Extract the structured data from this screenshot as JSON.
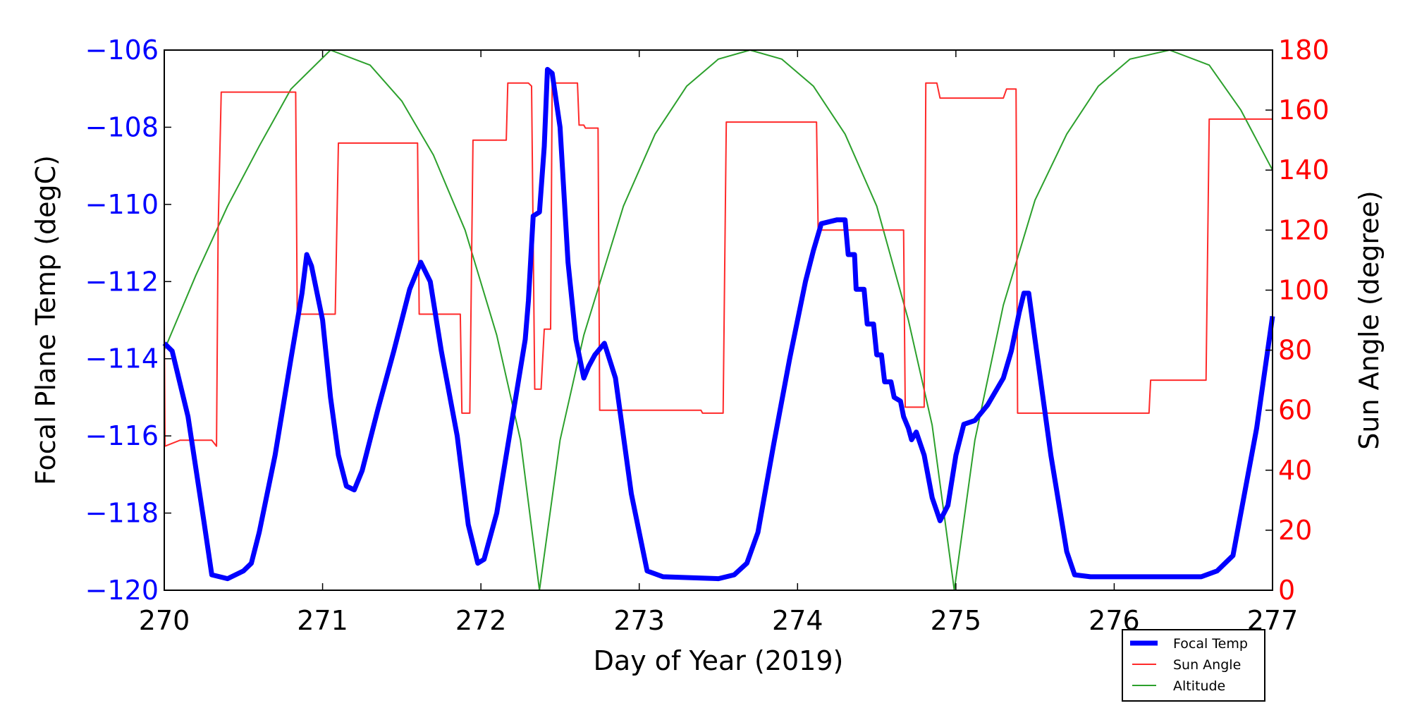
{
  "chart_data": {
    "type": "line",
    "xlabel": "Day of Year (2019)",
    "ylabel_left": "Focal Plane Temp (degC)",
    "ylabel_right": "Sun Angle (degree)",
    "xlim": [
      270,
      277
    ],
    "ylim_left": [
      -120,
      -106
    ],
    "ylim_right": [
      0,
      180
    ],
    "xticks": [
      270,
      271,
      272,
      273,
      274,
      275,
      276,
      277
    ],
    "yticks_left": [
      -120,
      -118,
      -116,
      -114,
      -112,
      -110,
      -108,
      -106
    ],
    "yticks_right": [
      0,
      20,
      40,
      60,
      80,
      100,
      120,
      140,
      160,
      180
    ],
    "legend_position": "below-right",
    "colors": {
      "focal": "#0000ff",
      "sun": "#ff2a2a",
      "altitude": "#2ca02c",
      "left_axis": "#0000ff",
      "right_axis": "#ff0000"
    },
    "series": [
      {
        "name": "Focal Temp",
        "axis": "left",
        "x": [
          270,
          270.05,
          270.15,
          270.25,
          270.3,
          270.35,
          270.4,
          270.5,
          270.55,
          270.6,
          270.7,
          270.8,
          270.87,
          270.9,
          270.93,
          271.0,
          271.05,
          271.1,
          271.15,
          271.2,
          271.25,
          271.35,
          271.45,
          271.55,
          271.62,
          271.68,
          271.75,
          271.85,
          271.92,
          271.98,
          272.02,
          272.1,
          272.2,
          272.28,
          272.3,
          272.33,
          272.37,
          272.4,
          272.42,
          272.45,
          272.5,
          272.55,
          272.6,
          272.65,
          272.68,
          272.72,
          272.78,
          272.85,
          272.95,
          273.05,
          273.15,
          273.5,
          273.6,
          273.68,
          273.75,
          273.85,
          273.95,
          274.05,
          274.1,
          274.15,
          274.25,
          274.3,
          274.32,
          274.36,
          274.37,
          274.42,
          274.44,
          274.48,
          274.5,
          274.53,
          274.55,
          274.59,
          274.61,
          274.65,
          274.67,
          274.7,
          274.72,
          274.75,
          274.8,
          274.85,
          274.9,
          274.95,
          275.0,
          275.05,
          275.12,
          275.2,
          275.3,
          275.35,
          275.4,
          275.43,
          275.46,
          275.5,
          275.6,
          275.7,
          275.75,
          275.85,
          276.55,
          276.65,
          276.75,
          276.8,
          276.9,
          277
        ],
        "y": [
          -113.6,
          -113.8,
          -115.5,
          -118.2,
          -119.6,
          -119.65,
          -119.7,
          -119.5,
          -119.3,
          -118.5,
          -116.5,
          -114,
          -112.3,
          -111.3,
          -111.6,
          -113,
          -115,
          -116.5,
          -117.3,
          -117.4,
          -116.9,
          -115.3,
          -113.8,
          -112.2,
          -111.5,
          -112,
          -113.8,
          -116,
          -118.3,
          -119.3,
          -119.2,
          -118,
          -115.5,
          -113.5,
          -112.5,
          -110.3,
          -110.2,
          -108.5,
          -106.5,
          -106.6,
          -108,
          -111.5,
          -113.5,
          -114.5,
          -114.2,
          -113.9,
          -113.6,
          -114.5,
          -117.5,
          -119.5,
          -119.65,
          -119.7,
          -119.6,
          -119.3,
          -118.5,
          -116.2,
          -114,
          -112,
          -111.2,
          -110.5,
          -110.4,
          -110.4,
          -111.3,
          -111.3,
          -112.2,
          -112.2,
          -113.1,
          -113.1,
          -113.9,
          -113.9,
          -114.6,
          -114.6,
          -115,
          -115.1,
          -115.5,
          -115.8,
          -116.1,
          -115.9,
          -116.5,
          -117.6,
          -118.2,
          -117.8,
          -116.5,
          -115.7,
          -115.6,
          -115.2,
          -114.5,
          -113.8,
          -112.8,
          -112.3,
          -112.3,
          -113.5,
          -116.5,
          -119,
          -119.6,
          -119.65,
          -119.65,
          -119.5,
          -119.1,
          -118,
          -115.8,
          -112.9
        ]
      },
      {
        "name": "Sun Angle",
        "axis": "right",
        "x": [
          270,
          270.005,
          270.1,
          270.3,
          270.33,
          270.34,
          270.36,
          270.83,
          270.84,
          271.08,
          271.1,
          271.6,
          271.61,
          271.87,
          271.88,
          271.93,
          271.95,
          272.16,
          272.17,
          272.3,
          272.32,
          272.34,
          272.38,
          272.4,
          272.44,
          272.45,
          272.61,
          272.62,
          272.65,
          272.66,
          272.74,
          272.75,
          273.39,
          273.4,
          273.53,
          273.55,
          274.12,
          274.13,
          274.67,
          274.68,
          274.8,
          274.81,
          274.88,
          274.9,
          275.3,
          275.32,
          275.38,
          275.39,
          276.22,
          276.23,
          276.58,
          276.6,
          277
        ],
        "y": [
          90,
          48,
          50,
          50,
          48,
          120,
          166,
          166,
          92,
          92,
          149,
          149,
          92,
          92,
          59,
          59,
          150,
          150,
          169,
          169,
          168,
          67,
          67,
          87,
          87,
          169,
          169,
          155,
          155,
          154,
          154,
          60,
          60,
          59,
          59,
          156,
          156,
          120,
          120,
          61,
          61,
          169,
          169,
          164,
          164,
          167,
          167,
          59,
          59,
          70,
          70,
          157,
          157
        ]
      },
      {
        "name": "Altitude",
        "axis": "right",
        "x": [
          270,
          270.2,
          270.4,
          270.6,
          270.8,
          271.05,
          271.3,
          271.5,
          271.7,
          271.9,
          272.1,
          272.25,
          272.37,
          272.5,
          272.65,
          272.9,
          273.1,
          273.3,
          273.5,
          273.7,
          273.9,
          274.1,
          274.3,
          274.5,
          274.7,
          274.85,
          274.99,
          275.12,
          275.3,
          275.5,
          275.7,
          275.9,
          276.1,
          276.35,
          276.6,
          276.8,
          277
        ],
        "y": [
          80,
          105,
          128,
          148,
          167,
          180,
          175,
          163,
          145,
          120,
          85,
          50,
          0,
          50,
          85,
          128,
          152,
          168,
          177,
          180,
          177,
          168,
          152,
          128,
          90,
          55,
          0,
          50,
          95,
          130,
          152,
          168,
          177,
          180,
          175,
          160,
          140
        ]
      }
    ]
  }
}
